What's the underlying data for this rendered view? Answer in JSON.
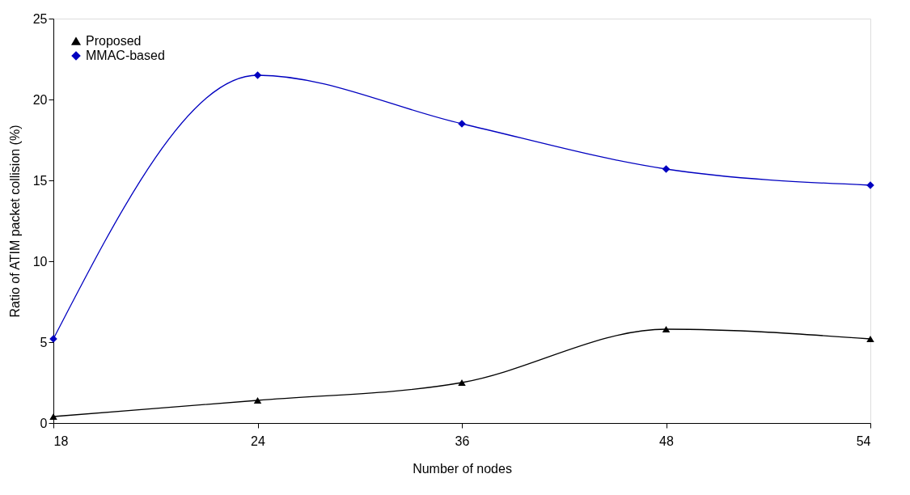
{
  "chart_data": {
    "type": "line",
    "xlabel": "Number of nodes",
    "ylabel": "Ratio of ATIM packet collision (%)",
    "categories": [
      "18",
      "24",
      "36",
      "48",
      "54"
    ],
    "series": [
      {
        "name": "Proposed",
        "color": "#000000",
        "marker": "triangle",
        "values": [
          0.4,
          1.4,
          2.5,
          5.8,
          5.2
        ]
      },
      {
        "name": "MMAC-based",
        "color": "#0000c0",
        "marker": "diamond",
        "values": [
          5.2,
          21.5,
          18.5,
          15.7,
          14.7
        ]
      }
    ],
    "ylim": [
      0,
      25
    ],
    "yticks": [
      0,
      5,
      10,
      15,
      20,
      25
    ],
    "grid": false,
    "legend": "top left",
    "line_style": "solid"
  }
}
